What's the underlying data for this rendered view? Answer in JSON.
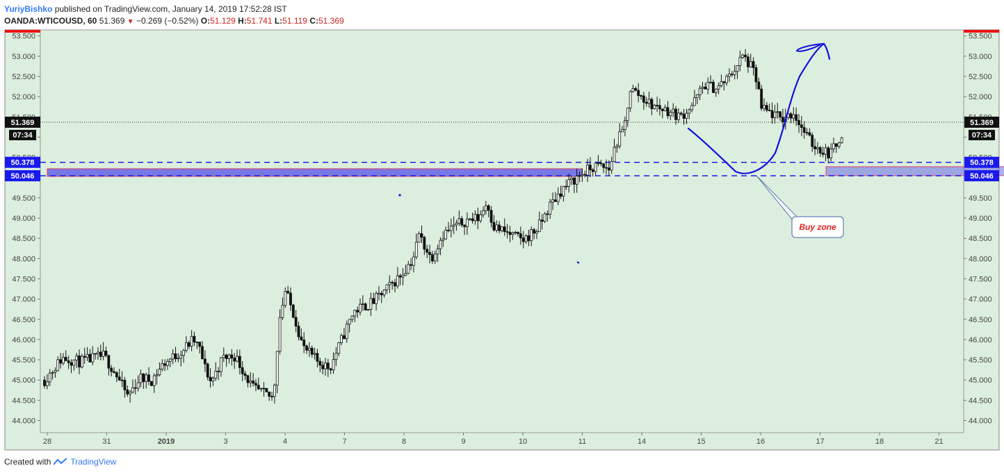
{
  "header": {
    "author": "YuriyBishko",
    "published_text": "published on TradingView.com, January 14, 2019 17:52:28 IST",
    "symbol": "OANDA:WTICOUSD, 60",
    "last": "51.369",
    "change": "−0.269 (−0.52%)",
    "open_label": "O:",
    "open": "51.129",
    "high_label": "H:",
    "high": "51.741",
    "low_label": "L:",
    "low": "51.119",
    "close_label": "C:",
    "close": "51.369"
  },
  "footer": {
    "created_with": "Created with",
    "brand": "TradingView"
  },
  "chart_data": {
    "type": "candlestick",
    "symbol": "OANDA:WTICOUSD",
    "interval": "60",
    "ylim": [
      43.7,
      53.65
    ],
    "y_ticks": [
      "44.000",
      "44.500",
      "45.000",
      "45.500",
      "46.000",
      "46.500",
      "47.000",
      "47.500",
      "48.000",
      "48.500",
      "49.000",
      "49.500",
      "50.000",
      "50.500",
      "51.000",
      "51.500",
      "52.000",
      "52.500",
      "53.000",
      "53.500"
    ],
    "x_ticks": [
      "28",
      "31",
      "2019",
      "3",
      "4",
      "7",
      "8",
      "9",
      "10",
      "11",
      "14",
      "15",
      "16",
      "17",
      "18",
      "21"
    ],
    "price_path": [
      [
        0,
        45.0
      ],
      [
        0.3,
        45.55
      ],
      [
        0.6,
        45.45
      ],
      [
        1.0,
        45.6
      ],
      [
        1.2,
        45.15
      ],
      [
        1.4,
        44.6
      ],
      [
        1.6,
        45.05
      ],
      [
        1.8,
        45.0
      ],
      [
        2.0,
        45.4
      ],
      [
        2.3,
        45.7
      ],
      [
        2.5,
        46.0
      ],
      [
        2.6,
        45.8
      ],
      [
        2.7,
        45.3
      ],
      [
        2.8,
        44.95
      ],
      [
        3.0,
        45.55
      ],
      [
        3.2,
        45.6
      ],
      [
        3.3,
        45.35
      ],
      [
        3.5,
        44.8
      ],
      [
        3.7,
        44.65
      ],
      [
        3.85,
        44.55
      ],
      [
        3.95,
        46.5
      ],
      [
        4.05,
        47.2
      ],
      [
        4.2,
        46.6
      ],
      [
        4.35,
        45.8
      ],
      [
        4.6,
        45.45
      ],
      [
        4.8,
        45.3
      ],
      [
        5.0,
        46.0
      ],
      [
        5.2,
        46.7
      ],
      [
        5.5,
        46.9
      ],
      [
        5.8,
        47.3
      ],
      [
        6.0,
        47.6
      ],
      [
        6.2,
        48.0
      ],
      [
        6.3,
        48.6
      ],
      [
        6.5,
        48.0
      ],
      [
        6.7,
        48.6
      ],
      [
        6.9,
        48.8
      ],
      [
        7.1,
        48.95
      ],
      [
        7.3,
        49.0
      ],
      [
        7.45,
        49.4
      ],
      [
        7.55,
        48.8
      ],
      [
        7.75,
        48.65
      ],
      [
        7.9,
        48.55
      ],
      [
        8.05,
        48.45
      ],
      [
        8.3,
        48.75
      ],
      [
        8.5,
        49.3
      ],
      [
        8.7,
        49.7
      ],
      [
        8.95,
        50.0
      ],
      [
        9.1,
        50.15
      ],
      [
        9.3,
        50.3
      ],
      [
        9.5,
        50.2
      ],
      [
        9.6,
        50.8
      ],
      [
        9.75,
        51.2
      ],
      [
        9.85,
        52.2
      ],
      [
        10.0,
        52.05
      ],
      [
        10.2,
        51.8
      ],
      [
        10.5,
        51.65
      ],
      [
        10.7,
        51.5
      ],
      [
        10.9,
        51.8
      ],
      [
        11.1,
        52.3
      ],
      [
        11.3,
        52.2
      ],
      [
        11.5,
        52.45
      ],
      [
        11.75,
        53.0
      ],
      [
        11.9,
        52.7
      ],
      [
        12.0,
        52.3
      ],
      [
        12.05,
        51.7
      ],
      [
        12.2,
        51.6
      ],
      [
        12.4,
        51.45
      ],
      [
        12.6,
        51.6
      ],
      [
        12.75,
        51.2
      ],
      [
        12.9,
        50.85
      ],
      [
        13.05,
        50.7
      ],
      [
        13.2,
        50.6
      ],
      [
        13.3,
        50.75
      ],
      [
        13.45,
        51.25
      ]
    ],
    "last_price": 51.369,
    "countdown": "07:34",
    "levels": [
      {
        "price": 50.378,
        "label": "50.378"
      },
      {
        "price": 50.046,
        "label": "50.046"
      }
    ],
    "zones": [
      {
        "name": "resistance-turned-support",
        "from_x": 0,
        "to_x": 9.0,
        "low": 50.03,
        "high": 50.22
      },
      {
        "name": "buy-zone",
        "from_x": 13.1,
        "to_x": 16.5,
        "low": 50.05,
        "high": 50.27
      }
    ],
    "annotation": "Buy zone",
    "colors": {
      "background": "#dceedd",
      "candle": "#111111",
      "level": "#1a1aee",
      "zone": "#6b6be6",
      "zone_border": "#e04060",
      "annotation_text": "#e02020",
      "drawing": "#1010e0"
    }
  }
}
